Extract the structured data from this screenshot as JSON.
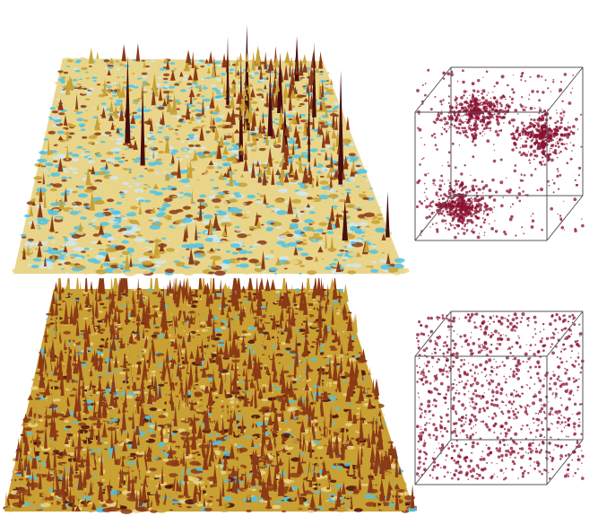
{
  "figure": {
    "panels": [
      {
        "id": "top-surface",
        "kind": "surface-plot",
        "texture": "sparse-spikes"
      },
      {
        "id": "top-cube",
        "kind": "3d-point-cloud",
        "density": "clustered"
      },
      {
        "id": "bottom-surface",
        "kind": "surface-plot",
        "texture": "dense-spikes"
      },
      {
        "id": "bottom-cube",
        "kind": "3d-point-cloud",
        "density": "scattered"
      }
    ],
    "colors": {
      "low": "#4fc3e8",
      "mid_low": "#cfe9f2",
      "mid": "#e9d58a",
      "mid_high": "#c9a033",
      "high": "#8b3a16",
      "peak": "#4a0d0d",
      "cloud": "#8a1030",
      "cube_edge": "#555555"
    }
  }
}
